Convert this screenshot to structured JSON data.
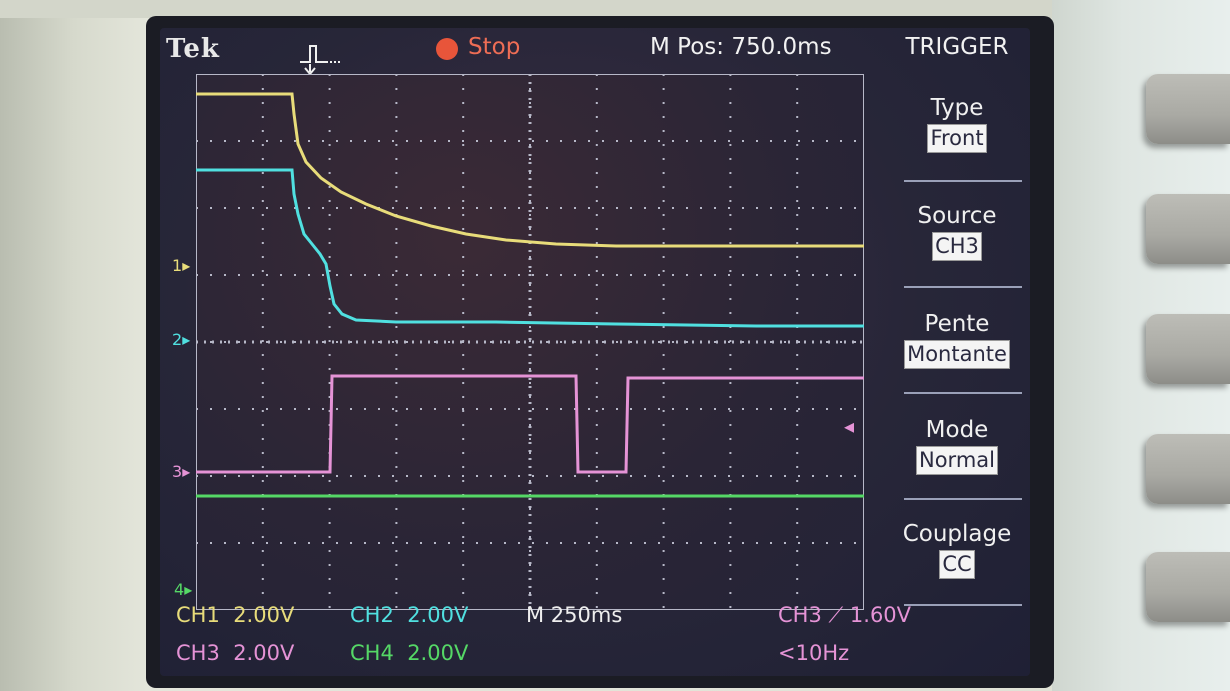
{
  "header": {
    "brand": "Tek",
    "run_state": "Stop",
    "mpos": "M Pos: 750.0ms"
  },
  "menu": {
    "title": "TRIGGER",
    "items": [
      {
        "label": "Type",
        "value": "Front"
      },
      {
        "label": "Source",
        "value": "CH3"
      },
      {
        "label": "Pente",
        "value": "Montante"
      },
      {
        "label": "Mode",
        "value": "Normal"
      },
      {
        "label": "Couplage",
        "value": "CC"
      }
    ]
  },
  "channels": {
    "ch1": {
      "name": "CH1",
      "scale": "2.00V",
      "color": "#e8dc7a",
      "marker": "1"
    },
    "ch2": {
      "name": "CH2",
      "scale": "2.00V",
      "color": "#50e0e0",
      "marker": "2"
    },
    "ch3": {
      "name": "CH3",
      "scale": "2.00V",
      "color": "#e593d6",
      "marker": "3"
    },
    "ch4": {
      "name": "CH4",
      "scale": "2.00V",
      "color": "#55d866",
      "marker": "4"
    }
  },
  "timebase": "M 250ms",
  "trigger_readout": {
    "source": "CH3",
    "slope_symbol": "⟋",
    "level": "1.60V",
    "frequency": "<10Hz"
  },
  "icons": {
    "trigger_position": "trigger-position-icon",
    "stop": "stop-icon",
    "trigger_level": "trigger-level-icon"
  }
}
